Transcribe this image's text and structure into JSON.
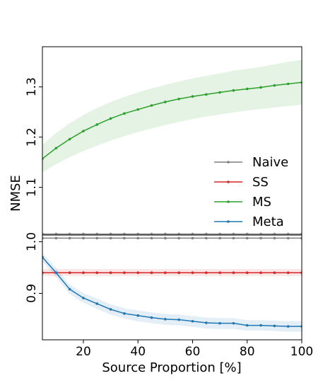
{
  "chart_data": {
    "type": "line",
    "xlabel": "Source Proportion [%]",
    "ylabel": "NMSE",
    "xlim": [
      5,
      100
    ],
    "x_ticks": [
      20,
      40,
      60,
      80,
      100
    ],
    "x_tick_labels": [
      "20",
      "40",
      "60",
      "80",
      "100"
    ],
    "legend_position": "center-right",
    "grid": false,
    "broken_y_axis": true,
    "panels": [
      {
        "name": "upper",
        "ylim": [
          1.005,
          1.38
        ],
        "y_ticks": [
          1.1,
          1.2,
          1.3
        ],
        "y_tick_labels": [
          "1.1",
          "1.2",
          "1.3"
        ]
      },
      {
        "name": "lower",
        "ylim": [
          0.81,
          1.013
        ],
        "y_ticks": [
          0.9,
          1.0
        ],
        "y_tick_labels": [
          "0.9",
          "1.0"
        ]
      }
    ],
    "x": [
      5,
      10,
      15,
      20,
      25,
      30,
      35,
      40,
      45,
      50,
      55,
      60,
      65,
      70,
      75,
      80,
      85,
      90,
      95,
      100
    ],
    "series": [
      {
        "name": "Naive",
        "color": "#7f7f7f",
        "values": [
          1.007,
          1.007,
          1.007,
          1.007,
          1.007,
          1.007,
          1.007,
          1.007,
          1.007,
          1.007,
          1.007,
          1.007,
          1.007,
          1.007,
          1.007,
          1.007,
          1.007,
          1.007,
          1.007,
          1.007
        ]
      },
      {
        "name": "SS",
        "color": "#d62728",
        "values": [
          0.94,
          0.94,
          0.94,
          0.94,
          0.94,
          0.94,
          0.94,
          0.94,
          0.94,
          0.94,
          0.94,
          0.94,
          0.94,
          0.94,
          0.94,
          0.94,
          0.94,
          0.94,
          0.94,
          0.94
        ],
        "band_lower": [
          0.934,
          0.934,
          0.934,
          0.934,
          0.934,
          0.934,
          0.934,
          0.934,
          0.934,
          0.934,
          0.934,
          0.934,
          0.934,
          0.934,
          0.934,
          0.934,
          0.934,
          0.934,
          0.934,
          0.934
        ],
        "band_upper": [
          0.947,
          0.947,
          0.947,
          0.947,
          0.947,
          0.947,
          0.947,
          0.947,
          0.947,
          0.947,
          0.947,
          0.947,
          0.947,
          0.947,
          0.947,
          0.947,
          0.947,
          0.947,
          0.947,
          0.947
        ]
      },
      {
        "name": "MS",
        "color": "#2ca02c",
        "values": [
          1.157,
          1.178,
          1.196,
          1.212,
          1.225,
          1.237,
          1.247,
          1.255,
          1.263,
          1.27,
          1.276,
          1.281,
          1.285,
          1.289,
          1.293,
          1.296,
          1.299,
          1.303,
          1.306,
          1.309
        ],
        "band_lower": [
          1.13,
          1.146,
          1.16,
          1.172,
          1.183,
          1.193,
          1.202,
          1.21,
          1.217,
          1.224,
          1.23,
          1.236,
          1.241,
          1.245,
          1.249,
          1.253,
          1.256,
          1.259,
          1.262,
          1.265
        ],
        "band_upper": [
          1.185,
          1.208,
          1.228,
          1.244,
          1.258,
          1.27,
          1.28,
          1.289,
          1.297,
          1.304,
          1.311,
          1.317,
          1.322,
          1.327,
          1.332,
          1.336,
          1.34,
          1.345,
          1.35,
          1.354
        ]
      },
      {
        "name": "Meta",
        "color": "#1f77b4",
        "values": [
          0.97,
          0.94,
          0.908,
          0.891,
          0.88,
          0.869,
          0.861,
          0.857,
          0.853,
          0.85,
          0.849,
          0.846,
          0.843,
          0.842,
          0.842,
          0.838,
          0.838,
          0.837,
          0.836,
          0.836
        ],
        "band_lower": [
          0.962,
          0.931,
          0.899,
          0.882,
          0.87,
          0.859,
          0.851,
          0.846,
          0.842,
          0.839,
          0.838,
          0.835,
          0.832,
          0.831,
          0.831,
          0.828,
          0.828,
          0.827,
          0.826,
          0.826
        ],
        "band_upper": [
          0.978,
          0.949,
          0.917,
          0.9,
          0.89,
          0.879,
          0.871,
          0.867,
          0.863,
          0.86,
          0.859,
          0.856,
          0.853,
          0.852,
          0.852,
          0.848,
          0.848,
          0.847,
          0.846,
          0.846
        ]
      }
    ]
  }
}
